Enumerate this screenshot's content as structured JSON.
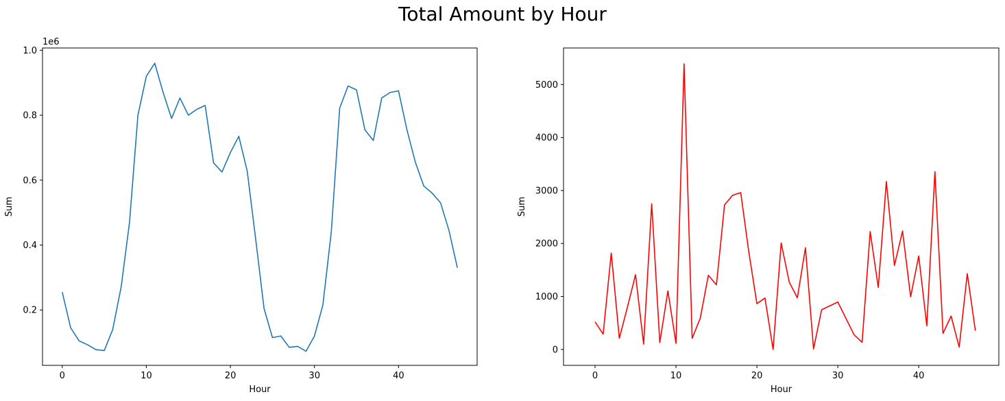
{
  "figure": {
    "title": "Total Amount by Hour"
  },
  "chart_data": [
    {
      "type": "line",
      "xlabel": "Hour",
      "ylabel": "Sum",
      "y_offset_label": "1e6",
      "xlim": [
        -2.35,
        49.35
      ],
      "ylim": [
        0.0295,
        1.007
      ],
      "xticks": [
        0,
        10,
        20,
        30,
        40
      ],
      "yticks": [
        0.2,
        0.4,
        0.6,
        0.8,
        1.0
      ],
      "ytick_labels": [
        "0.2",
        "0.4",
        "0.6",
        "0.8",
        "1.0"
      ],
      "grid": false,
      "color": "#1f77b4",
      "series": [
        {
          "x": [
            0,
            1,
            2,
            3,
            4,
            5,
            6,
            7,
            8,
            9,
            10,
            11,
            12,
            13,
            14,
            15,
            16,
            17,
            18,
            19,
            20,
            21,
            22,
            23,
            24,
            25,
            26,
            27,
            28,
            29,
            30,
            31,
            32,
            33,
            34,
            35,
            36,
            37,
            38,
            39,
            40,
            41,
            42,
            43,
            44,
            45,
            46,
            47
          ],
          "values": [
            0.255,
            0.145,
            0.105,
            0.093,
            0.078,
            0.075,
            0.14,
            0.27,
            0.47,
            0.8,
            0.92,
            0.96,
            0.87,
            0.79,
            0.853,
            0.8,
            0.818,
            0.83,
            0.653,
            0.625,
            0.685,
            0.735,
            0.628,
            0.42,
            0.205,
            0.115,
            0.12,
            0.085,
            0.088,
            0.073,
            0.12,
            0.215,
            0.44,
            0.822,
            0.89,
            0.878,
            0.755,
            0.722,
            0.853,
            0.87,
            0.875,
            0.755,
            0.655,
            0.582,
            0.56,
            0.53,
            0.445,
            0.33
          ]
        }
      ]
    },
    {
      "type": "line",
      "xlabel": "Hour",
      "ylabel": "Sum",
      "xlim": [
        -3.9,
        49.9
      ],
      "ylim": [
        -300,
        5690
      ],
      "xticks": [
        0,
        10,
        20,
        30,
        40
      ],
      "yticks": [
        0,
        1000,
        2000,
        3000,
        4000,
        5000
      ],
      "ytick_labels": [
        "0",
        "1000",
        "2000",
        "3000",
        "4000",
        "5000"
      ],
      "grid": false,
      "color": "#ff0000",
      "series": [
        {
          "x": [
            0,
            1,
            2,
            3,
            4,
            5,
            6,
            7,
            8,
            9,
            10,
            11,
            12,
            13,
            14,
            15,
            16,
            17,
            18,
            19,
            20,
            21,
            22,
            23,
            24,
            25,
            26,
            27,
            28,
            30,
            32,
            33,
            34,
            35,
            36,
            37,
            38,
            39,
            40,
            41,
            42,
            43,
            44,
            45,
            46,
            47
          ],
          "values": [
            520,
            290,
            1820,
            210,
            800,
            1410,
            100,
            2750,
            130,
            1105,
            115,
            5390,
            210,
            590,
            1400,
            1220,
            2730,
            2910,
            2960,
            1840,
            865,
            970,
            0,
            2010,
            1270,
            975,
            1920,
            10,
            750,
            895,
            280,
            135,
            2225,
            1170,
            3170,
            1585,
            2235,
            995,
            1765,
            445,
            3355,
            305,
            630,
            45,
            1430,
            355
          ]
        }
      ]
    }
  ]
}
